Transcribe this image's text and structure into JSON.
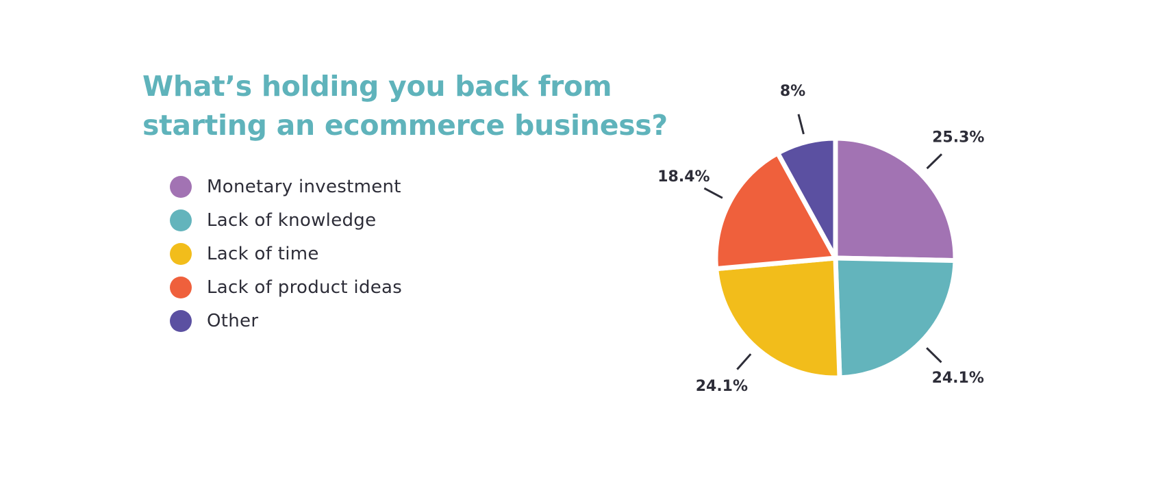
{
  "chart_data": {
    "type": "pie",
    "title": "What’s holding you back from starting an ecommerce business?",
    "legend_position": "left",
    "slices": [
      {
        "label": "Monetary investment",
        "value": 25.3,
        "value_label": "25.3%",
        "color": "#a273b3"
      },
      {
        "label": "Lack of knowledge",
        "value": 24.1,
        "value_label": "24.1%",
        "color": "#63b4bc"
      },
      {
        "label": "Lack of time",
        "value": 24.1,
        "value_label": "24.1%",
        "color": "#f2bd1b"
      },
      {
        "label": "Lack of product ideas",
        "value": 18.4,
        "value_label": "18.4%",
        "color": "#ef603c"
      },
      {
        "label": "Other",
        "value": 8,
        "value_label": "8%",
        "color": "#5b50a1"
      }
    ]
  }
}
